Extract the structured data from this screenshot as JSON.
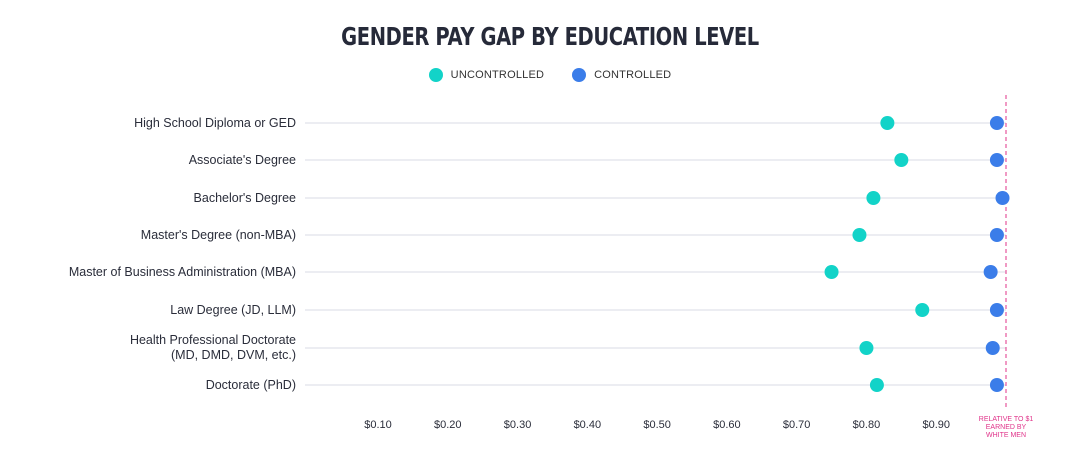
{
  "chart_data": {
    "type": "scatter",
    "title": "GENDER PAY GAP BY EDUCATION LEVEL",
    "categories": [
      [
        "High School Diploma or GED"
      ],
      [
        "Associate's Degree"
      ],
      [
        "Bachelor's Degree"
      ],
      [
        "Master's Degree (non-MBA)"
      ],
      [
        "Master of Business Administration (MBA)"
      ],
      [
        "Law Degree (JD, LLM)"
      ],
      [
        "Health Professional Doctorate",
        "(MD, DMD, DVM, etc.)"
      ],
      [
        "Doctorate (PhD)"
      ]
    ],
    "series": [
      {
        "name": "UNCONTROLLED",
        "color": "#12d3c8",
        "values": [
          0.83,
          0.85,
          0.81,
          0.79,
          0.75,
          0.88,
          0.8,
          0.815
        ]
      },
      {
        "name": "CONTROLLED",
        "color": "#3b7de9",
        "values": [
          0.987,
          0.987,
          0.995,
          0.987,
          0.978,
          0.987,
          0.981,
          0.987
        ]
      }
    ],
    "x_ticks": [
      {
        "value": 0.1,
        "label": "$0.10"
      },
      {
        "value": 0.2,
        "label": "$0.20"
      },
      {
        "value": 0.3,
        "label": "$0.30"
      },
      {
        "value": 0.4,
        "label": "$0.40"
      },
      {
        "value": 0.5,
        "label": "$0.50"
      },
      {
        "value": 0.6,
        "label": "$0.60"
      },
      {
        "value": 0.7,
        "label": "$0.70"
      },
      {
        "value": 0.8,
        "label": "$0.80"
      },
      {
        "value": 0.9,
        "label": "$0.90"
      }
    ],
    "xlim": [
      0.1,
      1.0
    ],
    "reference_line": {
      "value": 1.0,
      "color": "#e0338a",
      "label_lines": [
        "RELATIVE TO $1",
        "EARNED BY",
        "WHITE MEN"
      ]
    },
    "legend_position": "top-center",
    "gridline_color": "#d9dbe6"
  }
}
